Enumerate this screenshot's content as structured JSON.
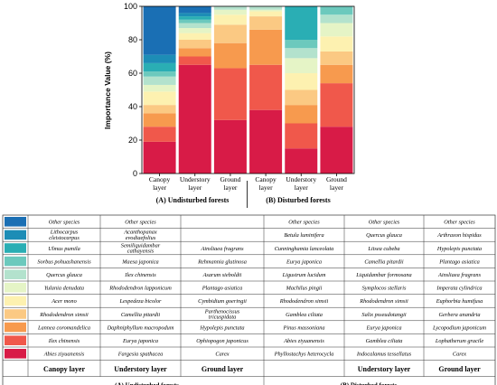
{
  "chart_data": {
    "type": "bar",
    "stacked": true,
    "ylabel": "Importance Value   (%)",
    "ylim": [
      0,
      100
    ],
    "yticks": [
      "0",
      "20",
      "40",
      "60",
      "80",
      "100"
    ],
    "categories": [
      "Canopy layer",
      "Understory layer",
      "Ground layer",
      "Canopy layer",
      "Understory layer",
      "Ground layer"
    ],
    "groups": [
      "(A) Undisturbed forests",
      "(B) Disturbed forests"
    ],
    "layer_colors": [
      "#d81b47",
      "#f0584b",
      "#f79a4e",
      "#fbc983",
      "#fdf1b0",
      "#e5f4c6",
      "#b3e2cd",
      "#6cc9bd",
      "#2aaeb4",
      "#1d8db6",
      "#1a6fb4"
    ],
    "bar_values": [
      [
        19,
        9,
        8,
        5,
        8,
        4,
        5,
        3,
        5,
        5,
        29
      ],
      [
        65,
        5,
        5,
        5,
        4,
        3,
        3,
        2,
        2,
        2,
        4
      ],
      [
        32,
        31,
        15,
        11,
        6,
        3,
        2
      ],
      [
        38,
        27,
        21,
        8,
        3,
        1,
        2
      ],
      [
        15,
        15,
        11,
        9,
        10,
        9,
        6,
        5,
        20
      ],
      [
        28,
        26,
        11,
        8,
        9,
        8,
        5,
        5
      ]
    ],
    "legend_table": {
      "rows": [
        [
          "Other species",
          "Other species",
          "",
          "Other species",
          "Other species",
          "Other species"
        ],
        [
          "Lithocarpus cleistocarpus",
          "Acanthopanax evodiaefolius",
          "",
          "Betula luminifera",
          "Quercus glauca",
          "Arthraxon hispidus"
        ],
        [
          "Ulmus pumila",
          "Semiliquidambar cathayensis",
          "Ainsliaea fragrans",
          "Cunninghamia lanceolata",
          "Litsea cubeba",
          "Hypolepis punctata"
        ],
        [
          "Sorbus pohuashanensis",
          "Maesa japonica",
          "Rehmannia glutinosa",
          "Eurya japonica",
          "Camellia pitardii",
          "Plantago asiatica"
        ],
        [
          "Quercus glauca",
          "Ilex chinensis",
          "Asarum sieboldii",
          "Ligustrum lucidum",
          "Liquidambar formosana",
          "Ainsliaea fragrans"
        ],
        [
          "Yulania denudata",
          "Rhododendron lapponicum",
          "Plantago asiatica",
          "Machilus pingii",
          "Symplocos stellaris",
          "Imperata cylindrica"
        ],
        [
          "Acer mono",
          "Lespedeza bicolor",
          "Cymbidium goeringii",
          "Rhododendron simsii",
          "Rhododendron simsii",
          "Euphorbia humifusa"
        ],
        [
          "Rhododendron simsii",
          "Camellia pitardii",
          "Parthenocissus tricuspidata",
          "Gamblea ciliata",
          "Salix psseudotangii",
          "Gerbera anandria"
        ],
        [
          "Lannea coromandelica",
          "Daphniphyllum macropodum",
          "Hypolepis punctata",
          "Pinus massoniana",
          "Eurya japonica",
          "Lycopodium japonicum"
        ],
        [
          "Ilex chinensis",
          "Eurya japonica",
          "Ophiopogon japonicus",
          "Abies ziyuanensis",
          "Gamblea ciliata",
          "Lophatherum gracile"
        ],
        [
          "Abies ziyuanensis",
          "Fargesia spathacea",
          "Carex",
          "Phyllostachys heterocycla",
          "Indocalamus tessellatus",
          "Carex"
        ]
      ],
      "headers": [
        "Canopy layer",
        "Understory layer",
        "Ground layer",
        "",
        "Understory layer",
        "Ground layer"
      ],
      "group_labels": [
        "(A) Undisturbed forests",
        "(B) Disturbed forests"
      ]
    }
  }
}
